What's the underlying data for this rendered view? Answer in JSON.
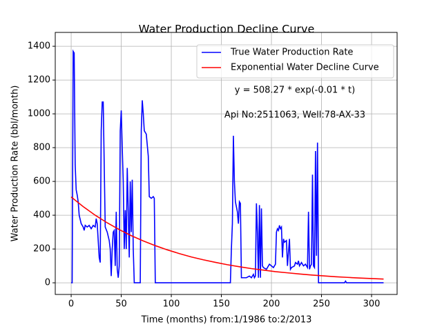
{
  "chart_data": {
    "type": "line",
    "title": "Water Production Decline Curve",
    "x_label": "Time (months) from:1/1986 to:2/2013",
    "y_label": "Water Production Rate (bbl/month)",
    "annotations": [
      "y = 508.27 * exp(-0.01 * t)",
      "Api No:2511063, Well:78-AX-33"
    ],
    "xlim": [
      -15.9,
      325.5
    ],
    "ylim": [
      -69,
      1482
    ],
    "xticks": [
      0,
      50,
      100,
      150,
      200,
      250,
      300
    ],
    "yticks": [
      0,
      200,
      400,
      600,
      800,
      1000,
      1200,
      1400
    ],
    "grid": true,
    "legend": "upper right",
    "series": [
      {
        "name": "True Water Production Rate",
        "color": "#0000ff",
        "x": [
          0,
          1,
          2,
          3,
          4,
          5,
          6,
          7,
          8,
          10,
          12,
          13,
          14,
          16,
          18,
          20,
          22,
          24,
          25,
          26,
          28,
          29,
          30,
          31,
          32,
          33,
          34,
          36,
          38,
          39,
          40,
          41,
          42,
          43,
          44,
          45,
          46,
          47,
          48,
          49,
          50,
          51,
          52,
          53,
          54,
          55,
          56,
          57,
          58,
          59,
          60,
          61,
          62,
          63,
          66,
          69,
          70,
          71,
          72,
          73,
          75,
          77,
          78,
          80,
          82,
          83,
          84,
          100,
          150,
          159,
          160,
          161,
          162,
          163,
          164,
          165,
          166,
          167,
          168,
          169,
          170,
          175,
          178,
          180,
          182,
          183,
          184,
          185,
          186,
          187,
          188,
          189,
          190,
          191,
          192,
          195,
          197,
          198,
          200,
          202,
          204,
          205,
          206,
          207,
          208,
          209,
          210,
          211,
          212,
          213,
          215,
          216,
          218,
          219,
          220,
          223,
          224,
          226,
          227,
          228,
          230,
          232,
          234,
          236,
          237,
          238,
          239,
          240,
          241,
          242,
          243,
          244,
          245,
          246,
          247,
          260,
          273,
          274,
          275,
          300,
          312
        ],
        "values": [
          0,
          0,
          1370,
          1360,
          700,
          550,
          520,
          480,
          400,
          350,
          330,
          310,
          340,
          330,
          340,
          320,
          340,
          330,
          380,
          350,
          150,
          120,
          900,
          1070,
          1070,
          700,
          330,
          300,
          250,
          200,
          40,
          200,
          300,
          310,
          100,
          420,
          80,
          30,
          100,
          900,
          1020,
          800,
          600,
          200,
          430,
          200,
          680,
          430,
          150,
          600,
          300,
          610,
          200,
          0,
          0,
          0,
          900,
          1080,
          1000,
          900,
          880,
          750,
          510,
          500,
          510,
          500,
          0,
          0,
          0,
          0,
          200,
          350,
          870,
          600,
          480,
          450,
          420,
          350,
          480,
          470,
          30,
          30,
          40,
          30,
          50,
          30,
          40,
          470,
          300,
          30,
          460,
          30,
          440,
          100,
          90,
          80,
          100,
          110,
          100,
          90,
          110,
          300,
          320,
          310,
          340,
          320,
          330,
          150,
          260,
          240,
          250,
          100,
          260,
          80,
          90,
          100,
          120,
          110,
          130,
          100,
          120,
          100,
          110,
          90,
          420,
          80,
          100,
          110,
          640,
          100,
          90,
          780,
          160,
          830,
          0,
          0,
          0,
          10,
          0,
          0,
          0
        ]
      },
      {
        "name": "Exponential Water Decline Curve",
        "color": "#ff0000",
        "x": [
          0,
          12,
          24,
          36,
          48,
          60,
          72,
          84,
          96,
          108,
          120,
          132,
          144,
          156,
          168,
          180,
          192,
          204,
          216,
          228,
          240,
          252,
          264,
          276,
          288,
          300,
          312
        ],
        "values": [
          508,
          451,
          400,
          355,
          315,
          279,
          248,
          220,
          195,
          173,
          153,
          136,
          121,
          107,
          95,
          84,
          75,
          66,
          59,
          52,
          46,
          41,
          36,
          32,
          28,
          25,
          22
        ]
      }
    ]
  }
}
